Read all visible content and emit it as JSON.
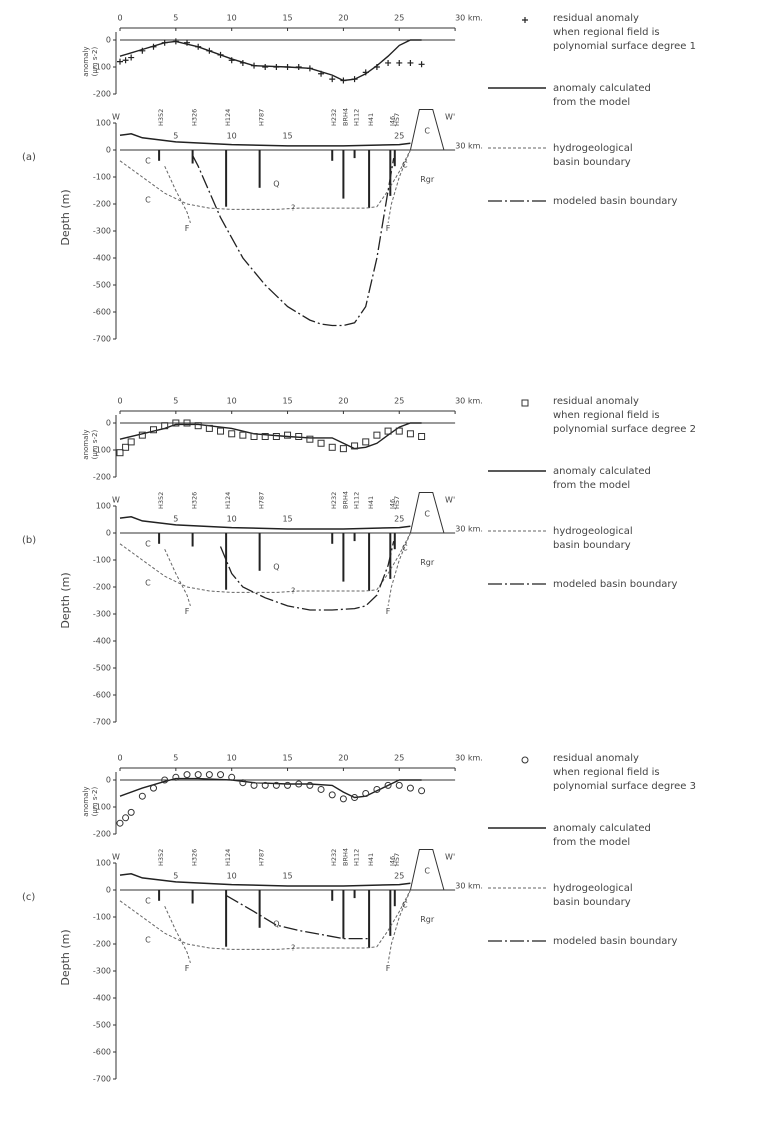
{
  "x_ticks": [
    0,
    5,
    10,
    15,
    20,
    25,
    {
      "value": 30,
      "label": "30 km."
    }
  ],
  "profile_ticks": [
    5,
    10,
    15,
    25,
    {
      "value": 30,
      "label": "30 km."
    }
  ],
  "anomaly_label": [
    "anomaly",
    "(µm s-2)"
  ],
  "anomaly_ticks": [
    0,
    -100,
    -200
  ],
  "depth_label": "Depth (m)",
  "depth_ticks": [
    100,
    0,
    -100,
    -200,
    -300,
    -400,
    -500,
    -600,
    -700
  ],
  "ends": [
    "W",
    "W'"
  ],
  "wells": {
    "names": [
      "H352",
      "H326",
      "H124",
      "H787",
      "H232",
      "BRH4",
      "H112",
      "H41",
      "J46",
      "H57"
    ],
    "x": [
      3.5,
      6.5,
      9.5,
      12.5,
      19,
      20,
      21,
      22.3,
      24.2,
      24.6
    ],
    "depth": [
      -40,
      -50,
      -210,
      -140,
      -40,
      -180,
      -30,
      -215,
      -170,
      -60
    ]
  },
  "topography": {
    "x": [
      0,
      1,
      2,
      5,
      10,
      15,
      20,
      25,
      26
    ],
    "elevation": [
      55,
      60,
      45,
      30,
      20,
      15,
      15,
      20,
      25
    ]
  },
  "hydro_boundary": {
    "x": [
      0,
      2,
      4,
      6,
      8,
      10,
      12,
      14,
      16,
      18,
      20,
      22,
      23,
      24,
      25,
      26
    ],
    "depth": [
      -40,
      -100,
      -160,
      -200,
      -215,
      -220,
      -220,
      -220,
      -215,
      -215,
      -215,
      -215,
      -210,
      -150,
      -80,
      0
    ]
  },
  "faults": [
    {
      "x": [
        4,
        5,
        6,
        6.3
      ],
      "depth": [
        -60,
        -150,
        -230,
        -270
      ]
    },
    {
      "x": [
        26,
        25,
        24.3,
        24
      ],
      "depth": [
        0,
        -100,
        -200,
        -270
      ]
    }
  ],
  "geology_labels": [
    "C",
    "C",
    "Q",
    "?",
    "F",
    "F",
    "C",
    "Rgr"
  ],
  "outcrop_label": "C",
  "panels": [
    {
      "label": "(a)",
      "marker": "cross",
      "residual": {
        "x": [
          0,
          0.5,
          1,
          2,
          3,
          4,
          5,
          6,
          7,
          8,
          9,
          10,
          11,
          12,
          13,
          14,
          15,
          16,
          17,
          18,
          19,
          20,
          21,
          22,
          23,
          24,
          25,
          26,
          27
        ],
        "values": [
          -80,
          -75,
          -65,
          -40,
          -25,
          -10,
          -5,
          -10,
          -25,
          -40,
          -55,
          -75,
          -85,
          -95,
          -100,
          -100,
          -100,
          -100,
          -105,
          -125,
          -145,
          -150,
          -145,
          -120,
          -100,
          -85,
          -85,
          -85,
          -90
        ]
      },
      "model": {
        "x": [
          0,
          2,
          4,
          5,
          7,
          10,
          12,
          15,
          17,
          19,
          20,
          21,
          22,
          23,
          24,
          25,
          26,
          27
        ],
        "values": [
          -60,
          -35,
          -10,
          -5,
          -25,
          -70,
          -95,
          -100,
          -105,
          -130,
          -150,
          -145,
          -125,
          -95,
          -60,
          -20,
          0,
          0
        ]
      },
      "modeled_boundary": {
        "x": [
          6.5,
          7,
          9,
          11,
          13,
          15,
          17,
          18,
          19,
          20,
          21,
          22,
          23,
          24,
          24.5
        ],
        "depth": [
          -20,
          -60,
          -250,
          -400,
          -500,
          -580,
          -630,
          -645,
          -650,
          -650,
          -640,
          -580,
          -400,
          -150,
          -30
        ]
      },
      "legend": {
        "residual": [
          "residual anomaly",
          "when regional field is",
          "polynomial surface degree 1"
        ],
        "model": [
          "anomaly calculated",
          "from the model"
        ],
        "hydro": [
          "hydrogeological",
          "basin boundary"
        ],
        "modeled": "modeled basin boundary"
      }
    },
    {
      "label": "(b)",
      "marker": "square",
      "residual": {
        "x": [
          0,
          0.5,
          1,
          2,
          3,
          4,
          5,
          6,
          7,
          8,
          9,
          10,
          11,
          12,
          13,
          14,
          15,
          16,
          17,
          18,
          19,
          20,
          21,
          22,
          23,
          24,
          25,
          26,
          27
        ],
        "values": [
          -110,
          -90,
          -70,
          -45,
          -25,
          -10,
          0,
          0,
          -10,
          -20,
          -30,
          -40,
          -45,
          -50,
          -50,
          -50,
          -45,
          -50,
          -60,
          -75,
          -90,
          -95,
          -85,
          -70,
          -45,
          -30,
          -30,
          -40,
          -50
        ]
      },
      "model": {
        "x": [
          0,
          2,
          4,
          5,
          7,
          10,
          12,
          15,
          17,
          19,
          20,
          21,
          22,
          23,
          24,
          25,
          26,
          27
        ],
        "values": [
          -60,
          -40,
          -20,
          -5,
          -5,
          -20,
          -40,
          -50,
          -55,
          -55,
          -75,
          -95,
          -90,
          -75,
          -45,
          -15,
          0,
          0
        ]
      },
      "modeled_boundary": {
        "x": [
          9,
          10,
          11,
          12,
          13,
          15,
          17,
          19,
          21,
          22,
          23,
          24,
          24.5
        ],
        "depth": [
          -50,
          -150,
          -200,
          -220,
          -240,
          -270,
          -285,
          -285,
          -280,
          -270,
          -230,
          -120,
          -30
        ]
      },
      "legend": {
        "residual": [
          "residual anomaly",
          "when regional field is",
          "polynomial surface degree 2"
        ],
        "model": [
          "anomaly calculated",
          "from the model"
        ],
        "hydro": [
          "hydrogeological",
          "basin boundary"
        ],
        "modeled": "modeled basin boundary"
      }
    },
    {
      "label": "(c)",
      "marker": "circle",
      "residual": {
        "x": [
          0,
          0.5,
          1,
          2,
          3,
          4,
          5,
          6,
          7,
          8,
          9,
          10,
          11,
          12,
          13,
          14,
          15,
          16,
          17,
          18,
          19,
          20,
          21,
          22,
          23,
          24,
          25,
          26,
          27
        ],
        "values": [
          -160,
          -140,
          -120,
          -60,
          -30,
          0,
          10,
          20,
          20,
          20,
          20,
          10,
          -10,
          -20,
          -20,
          -20,
          -20,
          -15,
          -20,
          -35,
          -55,
          -70,
          -65,
          -50,
          -35,
          -20,
          -20,
          -30,
          -40
        ]
      },
      "model": {
        "x": [
          0,
          2,
          4,
          5,
          7,
          10,
          12,
          15,
          17,
          19,
          20,
          21,
          22,
          23,
          24,
          25,
          26,
          27
        ],
        "values": [
          -60,
          -30,
          -5,
          5,
          5,
          0,
          -10,
          -15,
          -15,
          -20,
          -45,
          -65,
          -60,
          -40,
          -20,
          0,
          0,
          0
        ]
      },
      "modeled_boundary": {
        "x": [
          9.5,
          12,
          14,
          16,
          18,
          20,
          22.3,
          22.3
        ],
        "depth": [
          -20,
          -80,
          -130,
          -150,
          -165,
          -180,
          -180,
          -110
        ]
      },
      "legend": {
        "residual": [
          "residual anomaly",
          "when regional field is",
          "polynomial surface degree 3"
        ],
        "model": [
          "anomaly calculated",
          "from the model"
        ],
        "hydro": [
          "hydrogeological",
          "basin boundary"
        ],
        "modeled": "modeled basin boundary"
      }
    }
  ]
}
